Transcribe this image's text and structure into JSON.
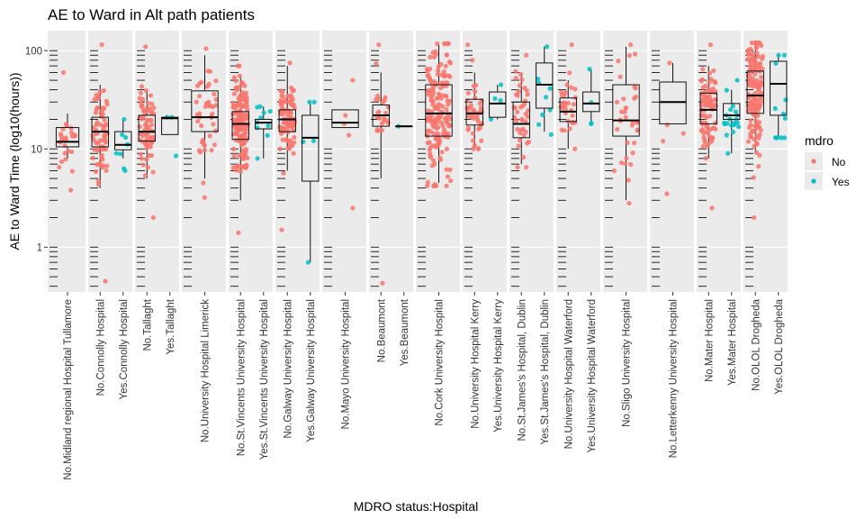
{
  "chart_data": {
    "type": "boxplot",
    "title": "AE to Ward in Alt path patients",
    "xlabel": "MDRO status:Hospital",
    "ylabel": "AE to Ward Time (log10(hours))",
    "y_scale": "log10",
    "ylim": [
      0.35,
      160
    ],
    "y_ticks": [
      1,
      10,
      100
    ],
    "y_tick_labels": [
      "1",
      "10",
      "100"
    ],
    "legend": {
      "title": "mdro",
      "placement": "right",
      "entries": [
        {
          "name": "No",
          "color": "#F8766D"
        },
        {
          "name": "Yes",
          "color": "#00BFC4"
        }
      ]
    },
    "facets": [
      {
        "hospital": "Midland regional Hospital Tullamore",
        "groups": [
          {
            "label": "No.Midland regional Hospital Tullamore",
            "mdro": "No",
            "q1": 10.5,
            "median": 11.8,
            "q3": 16.5,
            "whisker_low": 8,
            "whisker_high": 23,
            "n_points": 25,
            "min": 3.8,
            "max": 60
          }
        ]
      },
      {
        "hospital": "Connolly Hospital",
        "groups": [
          {
            "label": "No.Connolly Hospital",
            "mdro": "No",
            "q1": 10.5,
            "median": 15,
            "q3": 21,
            "whisker_low": 4,
            "whisker_high": 45,
            "n_points": 70,
            "min": 0.45,
            "max": 115
          },
          {
            "label": "Yes.Connolly Hospital",
            "mdro": "Yes",
            "q1": 9.8,
            "median": 11,
            "q3": 15,
            "whisker_low": 8,
            "whisker_high": 20,
            "n_points": 8,
            "min": 6,
            "max": 20
          }
        ]
      },
      {
        "hospital": "Tallaght",
        "groups": [
          {
            "label": "No.Tallaght",
            "mdro": "No",
            "q1": 12,
            "median": 15,
            "q3": 22,
            "whisker_low": 5,
            "whisker_high": 40,
            "n_points": 75,
            "min": 2,
            "max": 110
          },
          {
            "label": "Yes.Tallaght",
            "mdro": "Yes",
            "q1": 14,
            "median": 20.5,
            "q3": 21,
            "whisker_low": 14,
            "whisker_high": 21,
            "n_points": 3,
            "min": 8.5,
            "max": 21
          }
        ]
      },
      {
        "hospital": "University Hospital Limerick",
        "groups": [
          {
            "label": "No.University Hospital Limerick",
            "mdro": "No",
            "q1": 15,
            "median": 21,
            "q3": 39,
            "whisker_low": 5,
            "whisker_high": 90,
            "n_points": 45,
            "min": 3.2,
            "max": 105
          }
        ]
      },
      {
        "hospital": "St.Vincents University Hospital",
        "groups": [
          {
            "label": "No.St.Vincents University Hospital",
            "mdro": "No",
            "q1": 12.5,
            "median": 18,
            "q3": 24,
            "whisker_low": 3,
            "whisker_high": 55,
            "n_points": 160,
            "min": 1.4,
            "max": 70
          },
          {
            "label": "Yes.St.Vincents University Hospital",
            "mdro": "Yes",
            "q1": 16,
            "median": 18.5,
            "q3": 20,
            "whisker_low": 8,
            "whisker_high": 27,
            "n_points": 10,
            "min": 8,
            "max": 27
          }
        ]
      },
      {
        "hospital": "Galway University Hospital",
        "groups": [
          {
            "label": "No.Galway University Hospital",
            "mdro": "No",
            "q1": 15,
            "median": 20,
            "q3": 25,
            "whisker_low": 6,
            "whisker_high": 70,
            "n_points": 90,
            "min": 1.5,
            "max": 75
          },
          {
            "label": "Yes.Galway University Hospital",
            "mdro": "Yes",
            "q1": 4.7,
            "median": 13,
            "q3": 22,
            "whisker_low": 0.7,
            "whisker_high": 30,
            "n_points": 5,
            "min": 0.7,
            "max": 30
          }
        ]
      },
      {
        "hospital": "Mayo University Hospital",
        "groups": [
          {
            "label": "No.Mayo University Hospital",
            "mdro": "No",
            "q1": 16.5,
            "median": 18.5,
            "q3": 25,
            "whisker_low": 16.5,
            "whisker_high": 25,
            "n_points": 5,
            "min": 2.5,
            "max": 50
          }
        ]
      },
      {
        "hospital": "Beaumont",
        "groups": [
          {
            "label": "No.Beaumont",
            "mdro": "No",
            "q1": 17,
            "median": 22,
            "q3": 28,
            "whisker_low": 5,
            "whisker_high": 60,
            "n_points": 25,
            "min": 0.43,
            "max": 115
          },
          {
            "label": "Yes.Beaumont",
            "mdro": "Yes",
            "q1": 17,
            "median": 17,
            "q3": 17,
            "whisker_low": 17,
            "whisker_high": 17,
            "n_points": 1,
            "min": 17,
            "max": 17
          }
        ]
      },
      {
        "hospital": "Cork University Hospital",
        "groups": [
          {
            "label": "No.Cork University Hospital",
            "mdro": "No",
            "q1": 13.5,
            "median": 23,
            "q3": 45,
            "whisker_low": 4.5,
            "whisker_high": 115,
            "n_points": 170,
            "min": 4.2,
            "max": 118
          }
        ]
      },
      {
        "hospital": "University Hospital Kerry",
        "groups": [
          {
            "label": "No.University Hospital Kerry",
            "mdro": "No",
            "q1": 17.5,
            "median": 23,
            "q3": 32,
            "whisker_low": 10,
            "whisker_high": 60,
            "n_points": 45,
            "min": 10,
            "max": 115
          },
          {
            "label": "Yes.University Hospital Kerry",
            "mdro": "Yes",
            "q1": 21,
            "median": 29,
            "q3": 38,
            "whisker_low": 20,
            "whisker_high": 45,
            "n_points": 4,
            "min": 20,
            "max": 45
          }
        ]
      },
      {
        "hospital": "St.James's Hospital, Dublin",
        "groups": [
          {
            "label": "No.St.James's Hospital, Dublin",
            "mdro": "No",
            "q1": 13,
            "median": 18,
            "q3": 30,
            "whisker_low": 7,
            "whisker_high": 60,
            "n_points": 40,
            "min": 6.5,
            "max": 90
          },
          {
            "label": "Yes.St.James's Hospital, Dublin",
            "mdro": "Yes",
            "q1": 26,
            "median": 45,
            "q3": 75,
            "whisker_low": 15,
            "whisker_high": 110,
            "n_points": 9,
            "min": 14,
            "max": 110
          }
        ]
      },
      {
        "hospital": "University Hospital Waterford",
        "groups": [
          {
            "label": "No.University Hospital Waterford",
            "mdro": "No",
            "q1": 19,
            "median": 24,
            "q3": 33,
            "whisker_low": 10,
            "whisker_high": 50,
            "n_points": 30,
            "min": 10,
            "max": 115
          },
          {
            "label": "Yes.University Hospital Waterford",
            "mdro": "Yes",
            "q1": 24,
            "median": 29,
            "q3": 38,
            "whisker_low": 18,
            "whisker_high": 65,
            "n_points": 4,
            "min": 18,
            "max": 65
          }
        ]
      },
      {
        "hospital": "Sligo University Hospital",
        "groups": [
          {
            "label": "No.Sligo University Hospital",
            "mdro": "No",
            "q1": 13.5,
            "median": 19.5,
            "q3": 45,
            "whisker_low": 3,
            "whisker_high": 110,
            "n_points": 35,
            "min": 2.8,
            "max": 115
          }
        ]
      },
      {
        "hospital": "Letterkenny University Hospital",
        "groups": [
          {
            "label": "No.Letterkenny University Hospital",
            "mdro": "No",
            "q1": 18,
            "median": 30,
            "q3": 48,
            "whisker_low": 18,
            "whisker_high": 75,
            "n_points": 5,
            "min": 3.5,
            "max": 75
          }
        ]
      },
      {
        "hospital": "Mater Hospital",
        "groups": [
          {
            "label": "No.Mater Hospital",
            "mdro": "No",
            "q1": 18,
            "median": 25,
            "q3": 37,
            "whisker_low": 8,
            "whisker_high": 70,
            "n_points": 90,
            "min": 2.5,
            "max": 115
          },
          {
            "label": "Yes.Mater Hospital",
            "mdro": "Yes",
            "q1": 20,
            "median": 22,
            "q3": 29,
            "whisker_low": 9,
            "whisker_high": 40,
            "n_points": 20,
            "min": 9,
            "max": 50
          }
        ]
      },
      {
        "hospital": "OLOL Drogheda",
        "groups": [
          {
            "label": "No.OLOL Drogheda",
            "mdro": "No",
            "q1": 23,
            "median": 35,
            "q3": 62,
            "whisker_low": 9,
            "whisker_high": 120,
            "n_points": 150,
            "min": 2,
            "max": 120
          },
          {
            "label": "Yes.OLOL Drogheda",
            "mdro": "Yes",
            "q1": 22,
            "median": 46,
            "q3": 78,
            "whisker_low": 13,
            "whisker_high": 90,
            "n_points": 12,
            "min": 13,
            "max": 90
          }
        ]
      }
    ]
  }
}
